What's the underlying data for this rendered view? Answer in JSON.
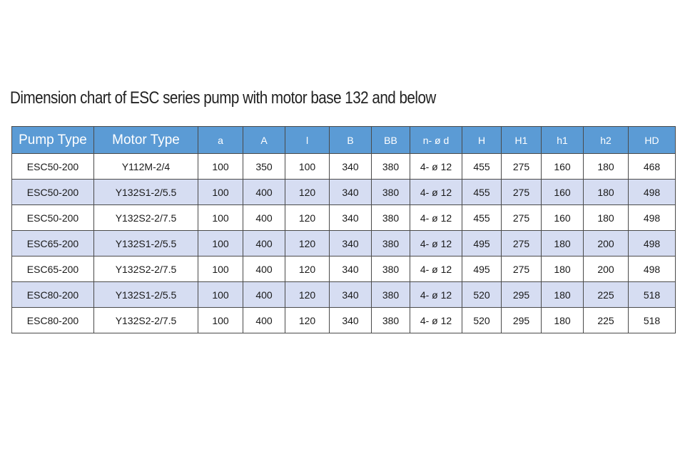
{
  "title": "Dimension chart of ESC series pump with motor base 132 and below",
  "columns": [
    "Pump Type",
    "Motor Type",
    "a",
    "A",
    "l",
    "B",
    "BB",
    "n- ø d",
    "H",
    "H1",
    "h1",
    "h2",
    "HD"
  ],
  "rows": [
    [
      "ESC50-200",
      "Y112M-2/4",
      "100",
      "350",
      "100",
      "340",
      "380",
      "4- ø 12",
      "455",
      "275",
      "160",
      "180",
      "468"
    ],
    [
      "ESC50-200",
      "Y132S1-2/5.5",
      "100",
      "400",
      "120",
      "340",
      "380",
      "4- ø 12",
      "455",
      "275",
      "160",
      "180",
      "498"
    ],
    [
      "ESC50-200",
      "Y132S2-2/7.5",
      "100",
      "400",
      "120",
      "340",
      "380",
      "4- ø 12",
      "455",
      "275",
      "160",
      "180",
      "498"
    ],
    [
      "ESC65-200",
      "Y132S1-2/5.5",
      "100",
      "400",
      "120",
      "340",
      "380",
      "4- ø 12",
      "495",
      "275",
      "180",
      "200",
      "498"
    ],
    [
      "ESC65-200",
      "Y132S2-2/7.5",
      "100",
      "400",
      "120",
      "340",
      "380",
      "4- ø 12",
      "495",
      "275",
      "180",
      "200",
      "498"
    ],
    [
      "ESC80-200",
      "Y132S1-2/5.5",
      "100",
      "400",
      "120",
      "340",
      "380",
      "4- ø 12",
      "520",
      "295",
      "180",
      "225",
      "518"
    ],
    [
      "ESC80-200",
      "Y132S2-2/7.5",
      "100",
      "400",
      "120",
      "340",
      "380",
      "4- ø 12",
      "520",
      "295",
      "180",
      "225",
      "518"
    ]
  ],
  "colors": {
    "header_bg": "#5b9bd5",
    "header_text": "#ffffff",
    "alt_row_bg": "#d6ddf2",
    "border": "#4a4a4a"
  }
}
